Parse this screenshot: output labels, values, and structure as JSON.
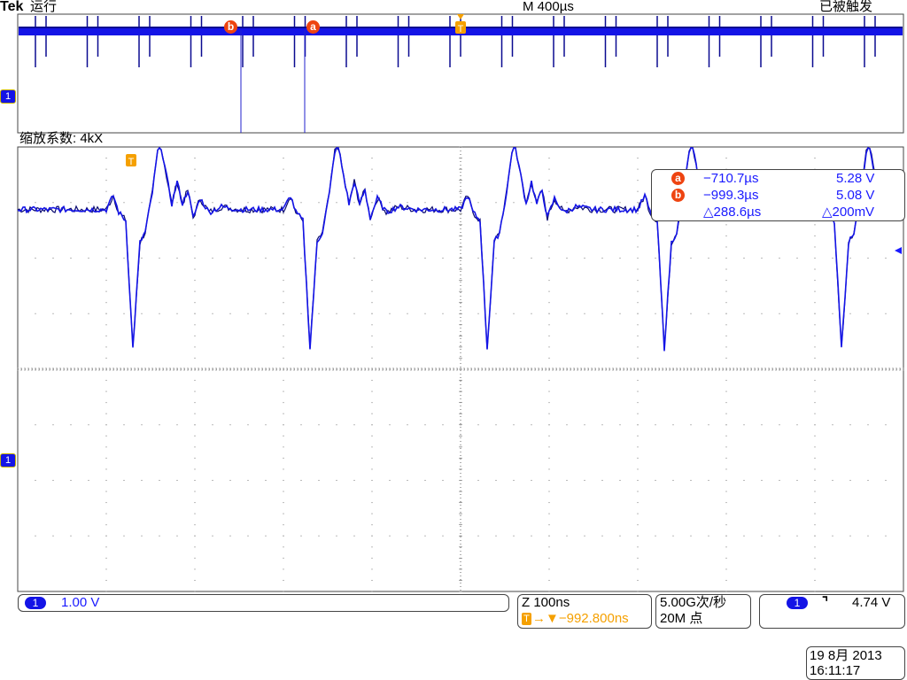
{
  "header": {
    "brand": "Tek",
    "run_state": "运行",
    "timebase": "M 400µs",
    "trigger_state": "已被触发"
  },
  "zoom_label": "缩放系数: 4kX",
  "cursors": {
    "a": {
      "label": "a",
      "time": "−710.7µs",
      "volt": "5.28 V"
    },
    "b": {
      "label": "b",
      "time": "−999.3µs",
      "volt": "5.08 V"
    },
    "delta_time": "△288.6µs",
    "delta_volt": "△200mV"
  },
  "channel": {
    "number": "1",
    "scale": "1.00 V",
    "color": "#1414e6"
  },
  "zoom_box": {
    "line1": "Z 100ns",
    "trigger_marker": "T",
    "line2": "→▼−992.800ns"
  },
  "acquisition": {
    "rate": "5.00G次/秒",
    "points": "20M 点"
  },
  "trigger": {
    "channel": "1",
    "slope_icon": "falling-edge",
    "slope_glyph": "⌝",
    "level": "4.74 V"
  },
  "datetime": {
    "date": "19 8月  2013",
    "time": "16:11:17"
  },
  "colors": {
    "trace": "#1414e6",
    "cursor": "#ee4411",
    "trigger": "#f5a000",
    "grid": "#888888"
  },
  "chart_data": {
    "type": "line",
    "xlabel": "",
    "ylabel": "",
    "x_units": "ns",
    "y_units": "V",
    "xlim": [
      -500,
      500
    ],
    "ylim": [
      -5.25,
      2.75
    ],
    "grid": true,
    "x_divisions": 10,
    "y_divisions": 8,
    "channel_ground_V": 0,
    "series": [
      {
        "points": [
          [
            -500,
            4.5
          ],
          [
            -400,
            4.5
          ],
          [
            -392,
            4.75
          ],
          [
            -386,
            4.45
          ],
          [
            -378,
            4.3
          ],
          [
            -370,
            2.0
          ],
          [
            -362,
            3.9
          ],
          [
            -356,
            4.1
          ],
          [
            -348,
            4.8
          ],
          [
            -340,
            5.8
          ],
          [
            -332,
            5.1
          ],
          [
            -326,
            4.6
          ],
          [
            -320,
            5.0
          ],
          [
            -314,
            4.6
          ],
          [
            -308,
            4.85
          ],
          [
            -302,
            4.35
          ],
          [
            -294,
            4.7
          ],
          [
            -284,
            4.45
          ],
          [
            -270,
            4.55
          ],
          [
            -250,
            4.5
          ],
          [
            -200,
            4.5
          ],
          [
            -192,
            4.75
          ],
          [
            -186,
            4.45
          ],
          [
            -178,
            4.3
          ],
          [
            -170,
            2.0
          ],
          [
            -162,
            3.9
          ],
          [
            -156,
            4.1
          ],
          [
            -148,
            4.8
          ],
          [
            -140,
            5.8
          ],
          [
            -132,
            5.1
          ],
          [
            -126,
            4.6
          ],
          [
            -120,
            5.0
          ],
          [
            -114,
            4.6
          ],
          [
            -108,
            4.85
          ],
          [
            -102,
            4.35
          ],
          [
            -94,
            4.7
          ],
          [
            -84,
            4.45
          ],
          [
            -70,
            4.55
          ],
          [
            -50,
            4.5
          ],
          [
            0,
            4.5
          ],
          [
            8,
            4.75
          ],
          [
            14,
            4.45
          ],
          [
            22,
            4.3
          ],
          [
            30,
            2.0
          ],
          [
            38,
            3.9
          ],
          [
            44,
            4.1
          ],
          [
            52,
            4.8
          ],
          [
            60,
            5.8
          ],
          [
            68,
            5.1
          ],
          [
            74,
            4.6
          ],
          [
            80,
            5.0
          ],
          [
            86,
            4.6
          ],
          [
            92,
            4.85
          ],
          [
            98,
            4.35
          ],
          [
            106,
            4.7
          ],
          [
            116,
            4.45
          ],
          [
            130,
            4.55
          ],
          [
            150,
            4.5
          ],
          [
            200,
            4.5
          ],
          [
            208,
            4.75
          ],
          [
            214,
            4.45
          ],
          [
            222,
            4.3
          ],
          [
            230,
            2.0
          ],
          [
            238,
            3.9
          ],
          [
            244,
            4.1
          ],
          [
            252,
            4.8
          ],
          [
            260,
            5.8
          ],
          [
            268,
            5.1
          ],
          [
            274,
            4.6
          ],
          [
            280,
            5.0
          ],
          [
            286,
            4.6
          ],
          [
            292,
            4.85
          ],
          [
            298,
            4.35
          ],
          [
            306,
            4.7
          ],
          [
            316,
            4.45
          ],
          [
            330,
            4.55
          ],
          [
            350,
            4.5
          ],
          [
            400,
            4.5
          ],
          [
            408,
            4.75
          ],
          [
            414,
            4.45
          ],
          [
            422,
            4.3
          ],
          [
            430,
            2.0
          ],
          [
            438,
            3.9
          ],
          [
            444,
            4.1
          ],
          [
            452,
            4.8
          ],
          [
            460,
            5.8
          ],
          [
            468,
            5.1
          ],
          [
            474,
            4.6
          ],
          [
            480,
            5.0
          ],
          [
            486,
            4.6
          ],
          [
            492,
            4.85
          ],
          [
            498,
            4.35
          ],
          [
            500,
            4.5
          ]
        ]
      }
    ]
  }
}
